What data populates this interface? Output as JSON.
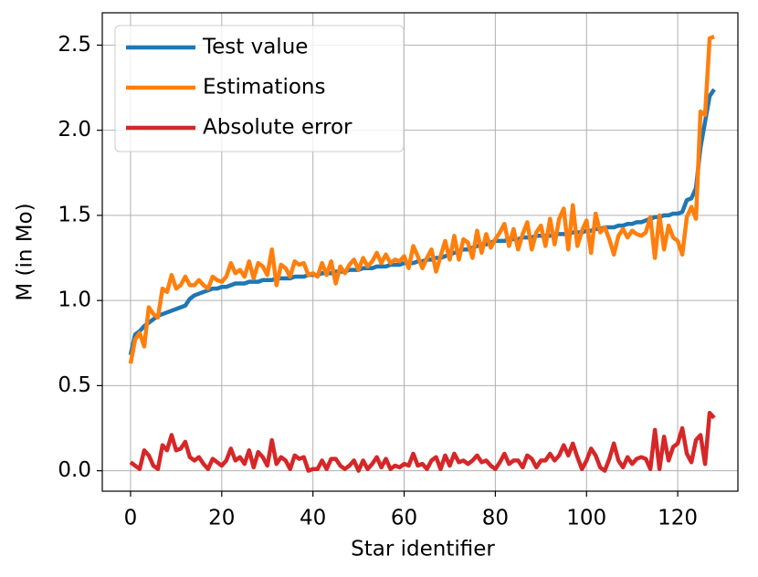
{
  "chart_data": {
    "type": "line",
    "x_label": "Star identifier",
    "y_label": "M (in Mo)",
    "x": [
      0,
      1,
      2,
      3,
      4,
      5,
      6,
      7,
      8,
      9,
      10,
      11,
      12,
      13,
      14,
      15,
      16,
      17,
      18,
      19,
      20,
      21,
      22,
      23,
      24,
      25,
      26,
      27,
      28,
      29,
      30,
      31,
      32,
      33,
      34,
      35,
      36,
      37,
      38,
      39,
      40,
      41,
      42,
      43,
      44,
      45,
      46,
      47,
      48,
      49,
      50,
      51,
      52,
      53,
      54,
      55,
      56,
      57,
      58,
      59,
      60,
      61,
      62,
      63,
      64,
      65,
      66,
      67,
      68,
      69,
      70,
      71,
      72,
      73,
      74,
      75,
      76,
      77,
      78,
      79,
      80,
      81,
      82,
      83,
      84,
      85,
      86,
      87,
      88,
      89,
      90,
      91,
      92,
      93,
      94,
      95,
      96,
      97,
      98,
      99,
      100,
      101,
      102,
      103,
      104,
      105,
      106,
      107,
      108,
      109,
      110,
      111,
      112,
      113,
      114,
      115,
      116,
      117,
      118,
      119,
      120,
      121,
      122,
      123,
      124,
      125,
      126,
      127,
      128
    ],
    "series": [
      {
        "name": "Test value",
        "color": "#1f77b4",
        "values": [
          0.68,
          0.8,
          0.82,
          0.85,
          0.87,
          0.89,
          0.91,
          0.92,
          0.93,
          0.94,
          0.95,
          0.96,
          0.97,
          1.01,
          1.03,
          1.04,
          1.05,
          1.06,
          1.07,
          1.07,
          1.08,
          1.08,
          1.09,
          1.1,
          1.1,
          1.1,
          1.11,
          1.11,
          1.11,
          1.12,
          1.12,
          1.12,
          1.13,
          1.13,
          1.13,
          1.13,
          1.14,
          1.14,
          1.14,
          1.15,
          1.15,
          1.15,
          1.16,
          1.16,
          1.16,
          1.17,
          1.17,
          1.17,
          1.18,
          1.18,
          1.18,
          1.19,
          1.19,
          1.19,
          1.2,
          1.2,
          1.2,
          1.21,
          1.21,
          1.21,
          1.22,
          1.22,
          1.22,
          1.23,
          1.23,
          1.24,
          1.24,
          1.25,
          1.25,
          1.26,
          1.27,
          1.28,
          1.29,
          1.3,
          1.3,
          1.31,
          1.32,
          1.33,
          1.33,
          1.34,
          1.35,
          1.35,
          1.35,
          1.36,
          1.36,
          1.36,
          1.37,
          1.37,
          1.37,
          1.38,
          1.38,
          1.38,
          1.38,
          1.39,
          1.39,
          1.39,
          1.39,
          1.4,
          1.4,
          1.4,
          1.41,
          1.41,
          1.42,
          1.42,
          1.43,
          1.43,
          1.43,
          1.44,
          1.44,
          1.45,
          1.45,
          1.46,
          1.46,
          1.47,
          1.48,
          1.49,
          1.49,
          1.5,
          1.5,
          1.51,
          1.51,
          1.52,
          1.59,
          1.6,
          1.66,
          1.9,
          2.05,
          2.2,
          2.24
        ]
      },
      {
        "name": "Estimations",
        "color": "#ff7f0e",
        "values": [
          0.63,
          0.77,
          0.81,
          0.73,
          0.96,
          0.92,
          0.9,
          1.07,
          1.05,
          1.15,
          1.07,
          1.09,
          1.14,
          1.09,
          1.09,
          1.12,
          1.09,
          1.07,
          1.14,
          1.12,
          1.11,
          1.14,
          1.22,
          1.16,
          1.18,
          1.14,
          1.23,
          1.13,
          1.22,
          1.2,
          1.15,
          1.3,
          1.09,
          1.21,
          1.19,
          1.14,
          1.23,
          1.21,
          1.22,
          1.15,
          1.16,
          1.14,
          1.22,
          1.15,
          1.23,
          1.1,
          1.2,
          1.16,
          1.21,
          1.24,
          1.18,
          1.25,
          1.2,
          1.23,
          1.28,
          1.22,
          1.27,
          1.22,
          1.24,
          1.23,
          1.26,
          1.19,
          1.32,
          1.26,
          1.19,
          1.25,
          1.3,
          1.17,
          1.26,
          1.35,
          1.24,
          1.38,
          1.24,
          1.36,
          1.34,
          1.25,
          1.41,
          1.28,
          1.39,
          1.31,
          1.36,
          1.4,
          1.45,
          1.32,
          1.42,
          1.3,
          1.39,
          1.46,
          1.3,
          1.4,
          1.44,
          1.32,
          1.48,
          1.33,
          1.48,
          1.54,
          1.3,
          1.56,
          1.32,
          1.41,
          1.47,
          1.28,
          1.51,
          1.4,
          1.43,
          1.36,
          1.27,
          1.38,
          1.42,
          1.37,
          1.41,
          1.39,
          1.38,
          1.4,
          1.49,
          1.25,
          1.5,
          1.3,
          1.44,
          1.37,
          1.35,
          1.27,
          1.49,
          1.55,
          1.48,
          2.11,
          2.09,
          2.54,
          2.55
        ]
      },
      {
        "name": "Absolute error",
        "color": "#d62728",
        "values": [
          0.05,
          0.03,
          0.01,
          0.12,
          0.09,
          0.03,
          0.01,
          0.15,
          0.12,
          0.21,
          0.12,
          0.13,
          0.17,
          0.08,
          0.06,
          0.08,
          0.04,
          0.01,
          0.07,
          0.05,
          0.03,
          0.06,
          0.13,
          0.06,
          0.08,
          0.04,
          0.12,
          0.02,
          0.11,
          0.08,
          0.03,
          0.18,
          0.04,
          0.08,
          0.06,
          0.01,
          0.09,
          0.07,
          0.08,
          0.0,
          0.01,
          0.01,
          0.06,
          0.01,
          0.07,
          0.07,
          0.03,
          0.01,
          0.03,
          0.06,
          0.0,
          0.06,
          0.01,
          0.04,
          0.08,
          0.02,
          0.07,
          0.01,
          0.03,
          0.02,
          0.04,
          0.03,
          0.1,
          0.03,
          0.04,
          0.01,
          0.06,
          0.08,
          0.01,
          0.09,
          0.03,
          0.1,
          0.05,
          0.06,
          0.04,
          0.06,
          0.09,
          0.05,
          0.06,
          0.03,
          0.01,
          0.05,
          0.1,
          0.04,
          0.06,
          0.06,
          0.02,
          0.09,
          0.07,
          0.02,
          0.06,
          0.06,
          0.1,
          0.06,
          0.09,
          0.15,
          0.09,
          0.16,
          0.08,
          0.01,
          0.06,
          0.13,
          0.09,
          0.02,
          0.0,
          0.07,
          0.16,
          0.06,
          0.02,
          0.08,
          0.04,
          0.07,
          0.08,
          0.07,
          0.01,
          0.24,
          0.01,
          0.2,
          0.06,
          0.14,
          0.16,
          0.25,
          0.1,
          0.05,
          0.18,
          0.21,
          0.04,
          0.34,
          0.31
        ]
      }
    ],
    "xlim": [
      -6.2,
      133.2
    ],
    "xticks": [
      0,
      20,
      40,
      60,
      80,
      100,
      120
    ],
    "ylim": [
      -0.12,
      2.69
    ],
    "yticks": [
      {
        "value": 0,
        "label": "0.0"
      },
      0.5,
      {
        "value": 1,
        "label": "1.0"
      },
      1.5,
      {
        "value": 2,
        "label": "2.0"
      },
      2.5
    ],
    "grid": true,
    "legend": "upper left"
  }
}
